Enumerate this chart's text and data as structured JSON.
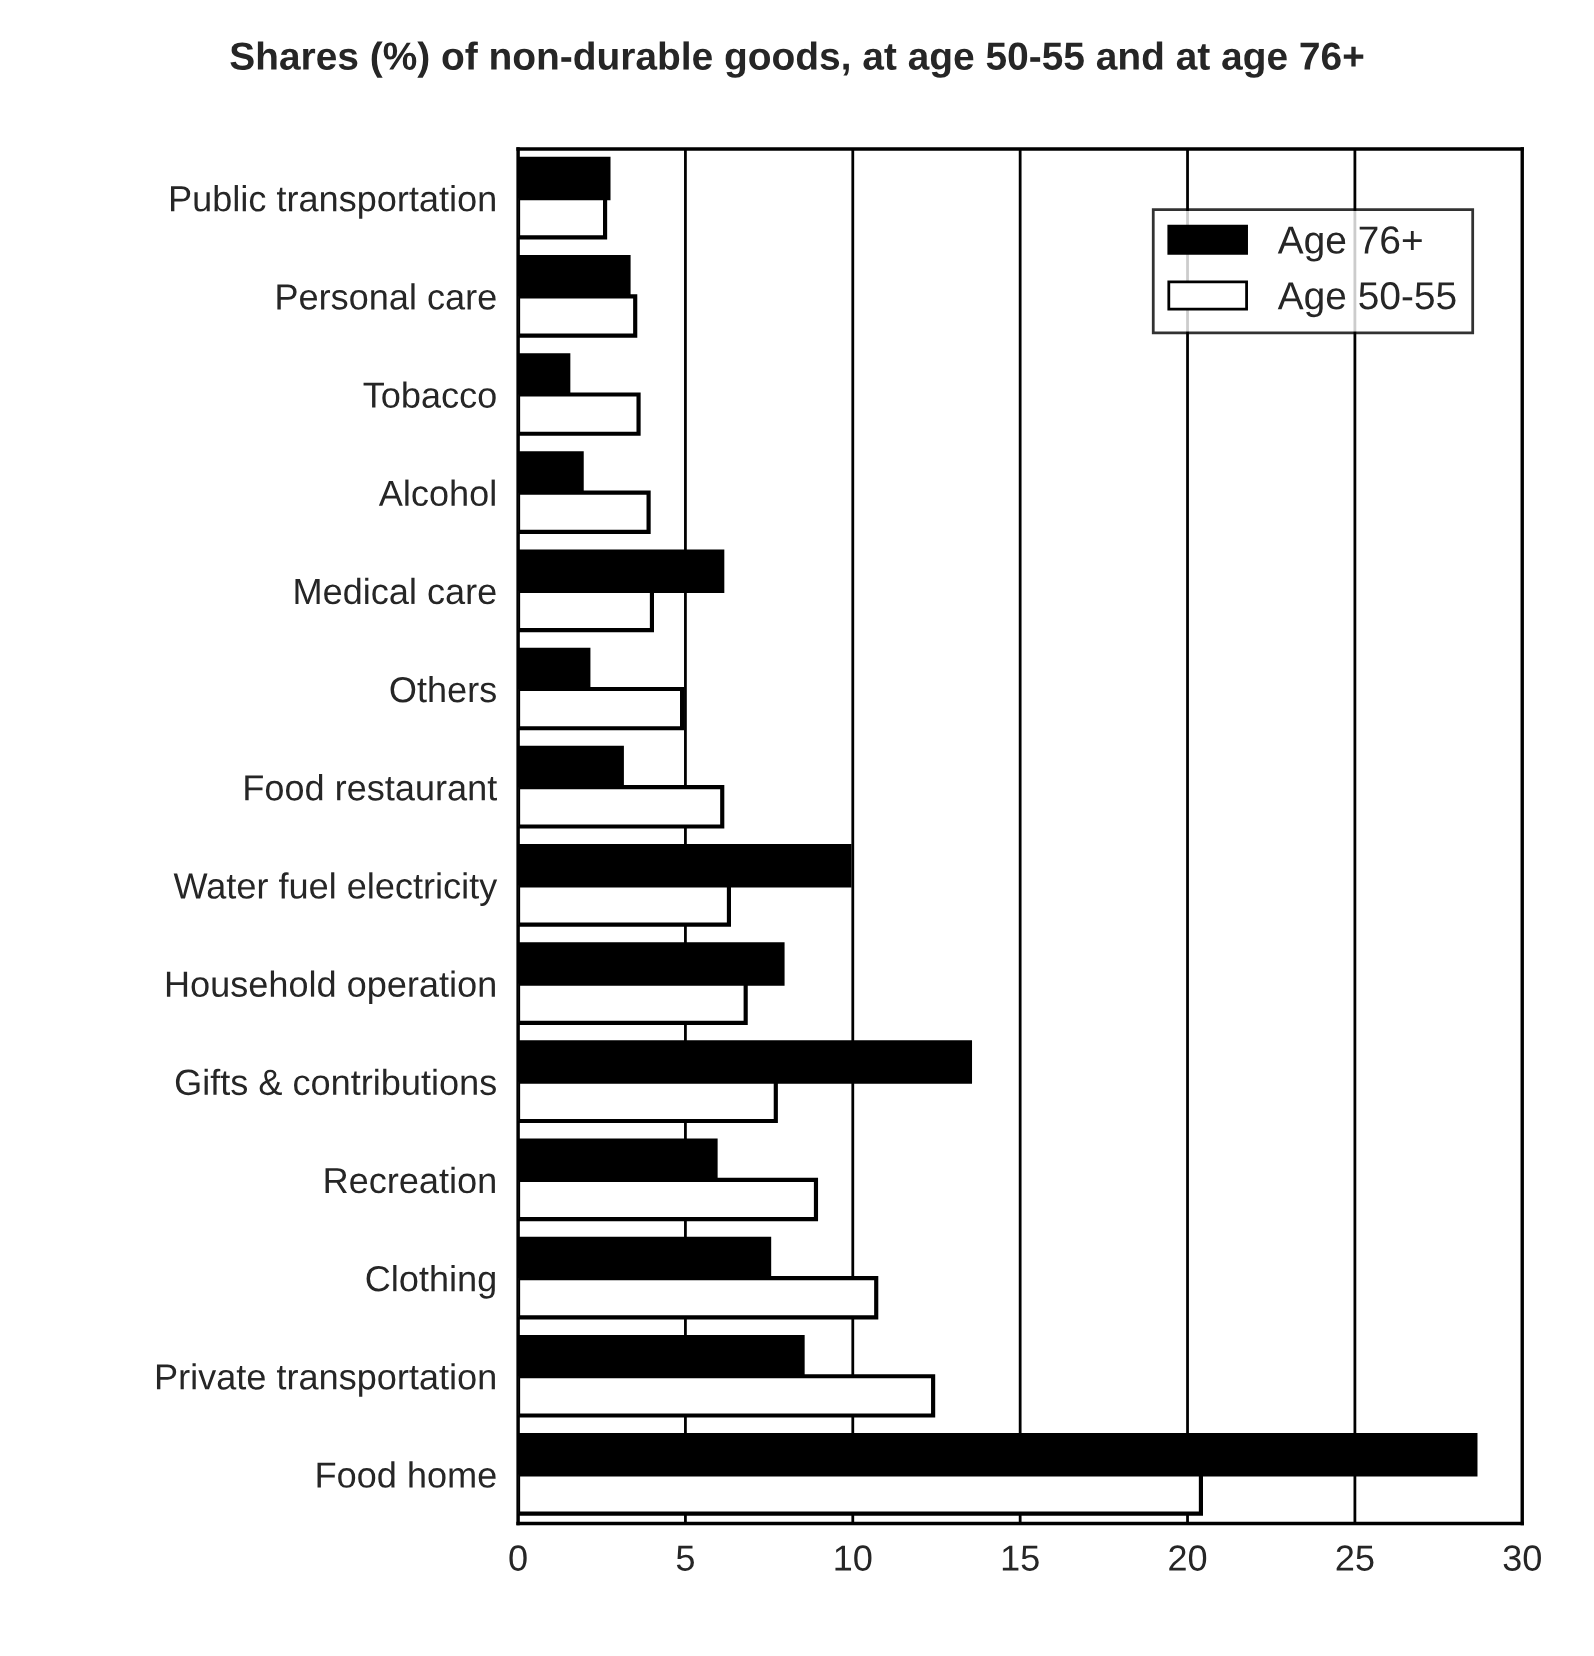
{
  "chart_data": {
    "type": "bar",
    "orientation": "horizontal",
    "title": "Shares (%) of non-durable goods, at age 50-55 and at age 76+",
    "categories": [
      "Public transportation",
      "Personal care",
      "Tobacco",
      "Alcohol",
      "Medical care",
      "Others",
      "Food restaurant",
      "Water fuel electricity",
      "Household operation",
      "Gifts & contributions",
      "Recreation",
      "Clothing",
      "Private transportation",
      "Food home"
    ],
    "series": [
      {
        "name": "Age 76+",
        "color": "#000000",
        "values": [
          2.7,
          3.3,
          1.5,
          1.9,
          6.1,
          2.1,
          3.1,
          9.9,
          7.9,
          13.5,
          5.9,
          7.5,
          8.5,
          28.6
        ]
      },
      {
        "name": "Age 50-55",
        "color": "#ffffff",
        "values": [
          2.6,
          3.5,
          3.6,
          3.9,
          4.0,
          4.9,
          6.1,
          6.3,
          6.8,
          7.7,
          8.9,
          10.7,
          12.4,
          20.4
        ]
      }
    ],
    "xlim": [
      0,
      30
    ],
    "xticks": [
      0,
      5,
      10,
      15,
      20,
      25,
      30
    ],
    "grid": "x",
    "legend": "top right"
  }
}
